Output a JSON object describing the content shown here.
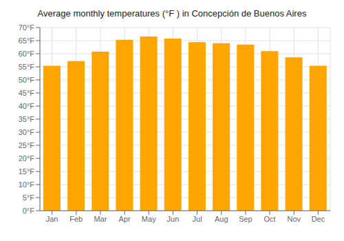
{
  "chart_data": {
    "type": "bar",
    "title": "Average monthly temperatures (°F ) in Concepción de Buenos Aires",
    "categories": [
      "Jan",
      "Feb",
      "Mar",
      "Apr",
      "May",
      "Jun",
      "Jul",
      "Aug",
      "Sep",
      "Oct",
      "Nov",
      "Dec"
    ],
    "values": [
      55.4,
      57.2,
      60.8,
      65.3,
      66.6,
      65.8,
      64.4,
      64.0,
      63.5,
      61.0,
      58.6,
      55.4
    ],
    "color": "#FFA500",
    "ylim": [
      0,
      70
    ],
    "yticks": [
      {
        "value": 0,
        "label": "0°F"
      },
      {
        "value": 5,
        "label": "5°F"
      },
      {
        "value": 10,
        "label": "10°F"
      },
      {
        "value": 15,
        "label": "15°F"
      },
      {
        "value": 20,
        "label": "20°F"
      },
      {
        "value": 25,
        "label": "25°F"
      },
      {
        "value": 30,
        "label": "30°F"
      },
      {
        "value": 35,
        "label": "35°F"
      },
      {
        "value": 40,
        "label": "40°F"
      },
      {
        "value": 45,
        "label": "45°F"
      },
      {
        "value": 50,
        "label": "50°F"
      },
      {
        "value": 55,
        "label": "55°F"
      },
      {
        "value": 60,
        "label": "60°F"
      },
      {
        "value": 65,
        "label": "65°F"
      },
      {
        "value": 70,
        "label": "70°F"
      }
    ],
    "grid": true
  }
}
